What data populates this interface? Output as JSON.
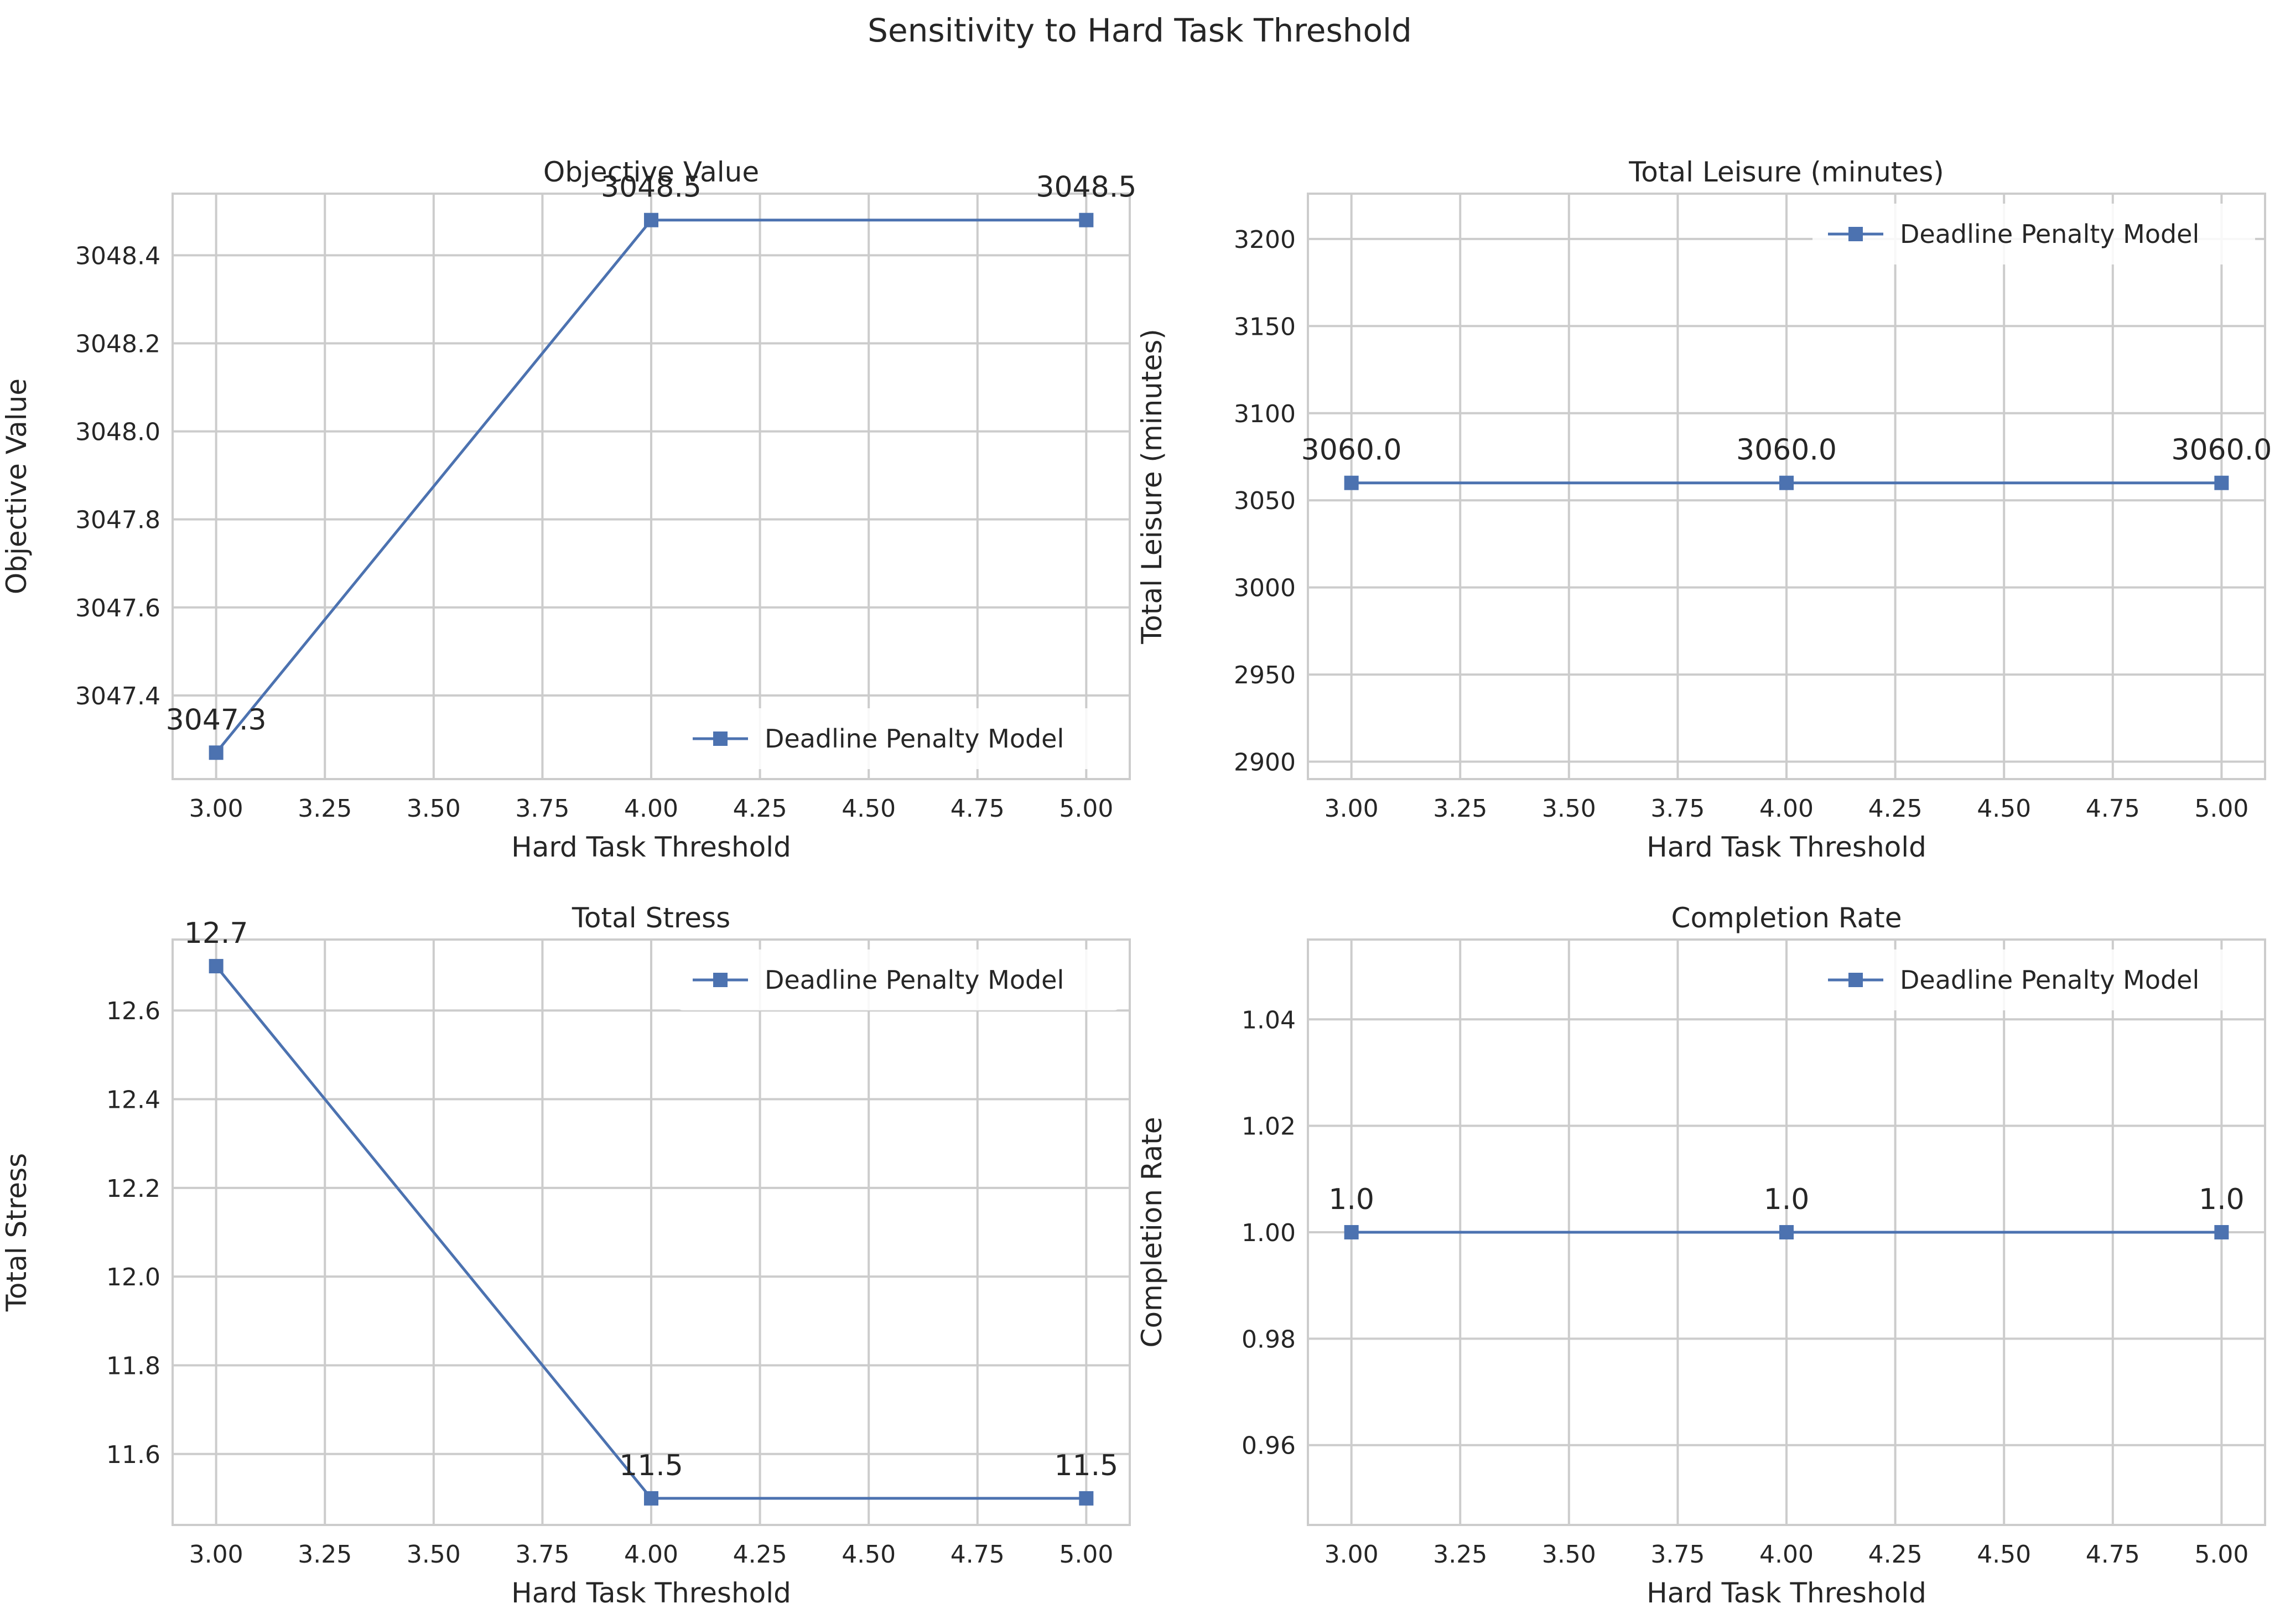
{
  "figure": {
    "suptitle": "Sensitivity to Hard Task Threshold"
  },
  "colors": {
    "line": "#4c72b0",
    "grid": "#cccccc",
    "text": "#262626",
    "background": "#ffffff"
  },
  "chart_data": [
    {
      "type": "line",
      "title": "Objective Value",
      "xlabel": "Hard Task Threshold",
      "ylabel": "Objective Value",
      "x": [
        3.0,
        4.0,
        5.0
      ],
      "series": [
        {
          "name": "Deadline Penalty Model",
          "values": [
            3047.27,
            3048.48,
            3048.48
          ],
          "marker": "square"
        }
      ],
      "data_labels": [
        "3047.3",
        "3048.5",
        "3048.5"
      ],
      "xlim": [
        2.9,
        5.1
      ],
      "ylim": [
        3047.21,
        3048.54
      ],
      "xticks": [
        3.0,
        3.25,
        3.5,
        3.75,
        4.0,
        4.25,
        4.5,
        4.75,
        5.0
      ],
      "xtick_labels": [
        "3.00",
        "3.25",
        "3.50",
        "3.75",
        "4.00",
        "4.25",
        "4.50",
        "4.75",
        "5.00"
      ],
      "yticks": [
        3047.4,
        3047.6,
        3047.8,
        3048.0,
        3048.2,
        3048.4
      ],
      "ytick_labels": [
        "3047.4",
        "3047.6",
        "3047.8",
        "3048.0",
        "3048.2",
        "3048.4"
      ],
      "grid": true,
      "legend": "lower right"
    },
    {
      "type": "line",
      "title": "Total Leisure (minutes)",
      "xlabel": "Hard Task Threshold",
      "ylabel": "Total Leisure (minutes)",
      "x": [
        3.0,
        4.0,
        5.0
      ],
      "series": [
        {
          "name": "Deadline Penalty Model",
          "values": [
            3060.0,
            3060.0,
            3060.0
          ],
          "marker": "square"
        }
      ],
      "data_labels": [
        "3060.0",
        "3060.0",
        "3060.0"
      ],
      "xlim": [
        2.9,
        5.1
      ],
      "ylim": [
        2890,
        3226
      ],
      "xticks": [
        3.0,
        3.25,
        3.5,
        3.75,
        4.0,
        4.25,
        4.5,
        4.75,
        5.0
      ],
      "xtick_labels": [
        "3.00",
        "3.25",
        "3.50",
        "3.75",
        "4.00",
        "4.25",
        "4.50",
        "4.75",
        "5.00"
      ],
      "yticks": [
        2900,
        2950,
        3000,
        3050,
        3100,
        3150,
        3200
      ],
      "ytick_labels": [
        "2900",
        "2950",
        "3000",
        "3050",
        "3100",
        "3150",
        "3200"
      ],
      "grid": true,
      "legend": "upper right"
    },
    {
      "type": "line",
      "title": "Total Stress",
      "xlabel": "Hard Task Threshold",
      "ylabel": "Total Stress",
      "x": [
        3.0,
        4.0,
        5.0
      ],
      "series": [
        {
          "name": "Deadline Penalty Model",
          "values": [
            12.7,
            11.5,
            11.5
          ],
          "marker": "square"
        }
      ],
      "data_labels": [
        "12.7",
        "11.5",
        "11.5"
      ],
      "xlim": [
        2.9,
        5.1
      ],
      "ylim": [
        11.44,
        12.76
      ],
      "xticks": [
        3.0,
        3.25,
        3.5,
        3.75,
        4.0,
        4.25,
        4.5,
        4.75,
        5.0
      ],
      "xtick_labels": [
        "3.00",
        "3.25",
        "3.50",
        "3.75",
        "4.00",
        "4.25",
        "4.50",
        "4.75",
        "5.00"
      ],
      "yticks": [
        11.6,
        11.8,
        12.0,
        12.2,
        12.4,
        12.6
      ],
      "ytick_labels": [
        "11.6",
        "11.8",
        "12.0",
        "12.2",
        "12.4",
        "12.6"
      ],
      "grid": true,
      "legend": "upper right"
    },
    {
      "type": "line",
      "title": "Completion Rate",
      "xlabel": "Hard Task Threshold",
      "ylabel": "Completion Rate",
      "x": [
        3.0,
        4.0,
        5.0
      ],
      "series": [
        {
          "name": "Deadline Penalty Model",
          "values": [
            1.0,
            1.0,
            1.0
          ],
          "marker": "square"
        }
      ],
      "data_labels": [
        "1.0",
        "1.0",
        "1.0"
      ],
      "xlim": [
        2.9,
        5.1
      ],
      "ylim": [
        0.945,
        1.055
      ],
      "xticks": [
        3.0,
        3.25,
        3.5,
        3.75,
        4.0,
        4.25,
        4.5,
        4.75,
        5.0
      ],
      "xtick_labels": [
        "3.00",
        "3.25",
        "3.50",
        "3.75",
        "4.00",
        "4.25",
        "4.50",
        "4.75",
        "5.00"
      ],
      "yticks": [
        0.96,
        0.98,
        1.0,
        1.02,
        1.04
      ],
      "ytick_labels": [
        "0.96",
        "0.98",
        "1.00",
        "1.02",
        "1.04"
      ],
      "grid": true,
      "legend": "upper right"
    }
  ]
}
